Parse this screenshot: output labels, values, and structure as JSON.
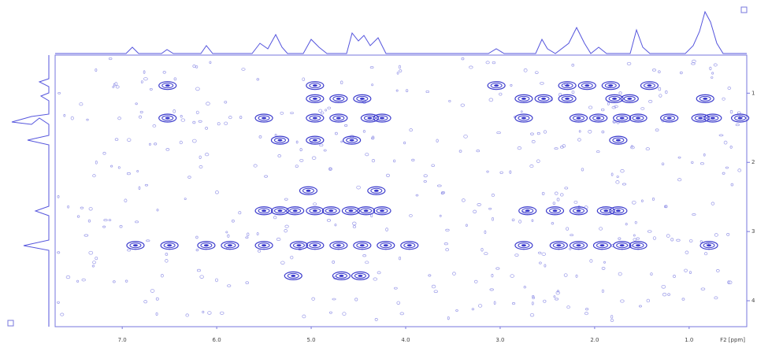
{
  "chart_data": {
    "type": "contour",
    "x_label": "F2 [ppm]",
    "xlim": [
      7.71,
      0.39
    ],
    "xticks": [
      {
        "value": 7.0,
        "label": "7.0"
      },
      {
        "value": 6.0,
        "label": "6.0"
      },
      {
        "value": 5.0,
        "label": "5.0"
      },
      {
        "value": 4.0,
        "label": "4.0"
      },
      {
        "value": 3.0,
        "label": "3.0"
      },
      {
        "value": 2.0,
        "label": "2.0"
      },
      {
        "value": 1.0,
        "label": "1.0"
      }
    ],
    "ylim": [
      0.45,
      4.375
    ],
    "yticks": [
      1,
      2,
      3,
      4
    ],
    "color": "#3a3acc",
    "x": [
      6.52,
      4.96,
      3.04,
      2.29,
      2.08,
      1.83,
      1.42,
      4.96,
      4.71,
      4.46,
      2.75,
      2.54,
      2.29,
      1.79,
      1.63,
      0.83,
      6.52,
      5.5,
      4.96,
      4.71,
      4.38,
      4.25,
      2.75,
      2.17,
      1.96,
      1.71,
      1.54,
      1.21,
      0.88,
      0.75,
      0.46,
      5.33,
      4.96,
      4.57,
      1.75,
      5.03,
      4.31,
      5.5,
      5.33,
      5.17,
      4.96,
      4.79,
      4.58,
      4.42,
      4.25,
      2.71,
      2.42,
      2.17,
      1.88,
      1.75,
      6.86,
      6.5,
      6.11,
      5.86,
      5.5,
      5.13,
      4.96,
      4.71,
      4.46,
      4.21,
      3.96,
      2.75,
      2.38,
      2.17,
      1.92,
      1.71,
      1.54,
      0.79,
      5.19,
      4.68,
      4.48
    ],
    "y": [
      0.89,
      0.89,
      0.89,
      0.89,
      0.89,
      0.89,
      0.89,
      1.08,
      1.08,
      1.08,
      1.08,
      1.08,
      1.08,
      1.08,
      1.08,
      1.08,
      1.36,
      1.36,
      1.36,
      1.36,
      1.36,
      1.36,
      1.36,
      1.36,
      1.36,
      1.36,
      1.36,
      1.36,
      1.36,
      1.36,
      1.36,
      1.68,
      1.68,
      1.68,
      1.68,
      2.41,
      2.41,
      2.7,
      2.7,
      2.7,
      2.7,
      2.7,
      2.7,
      2.7,
      2.7,
      2.7,
      2.7,
      2.7,
      2.7,
      2.7,
      3.2,
      3.2,
      3.2,
      3.2,
      3.2,
      3.2,
      3.2,
      3.2,
      3.2,
      3.2,
      3.2,
      3.2,
      3.2,
      3.2,
      3.2,
      3.2,
      3.2,
      3.2,
      3.64,
      3.64,
      3.64
    ]
  }
}
